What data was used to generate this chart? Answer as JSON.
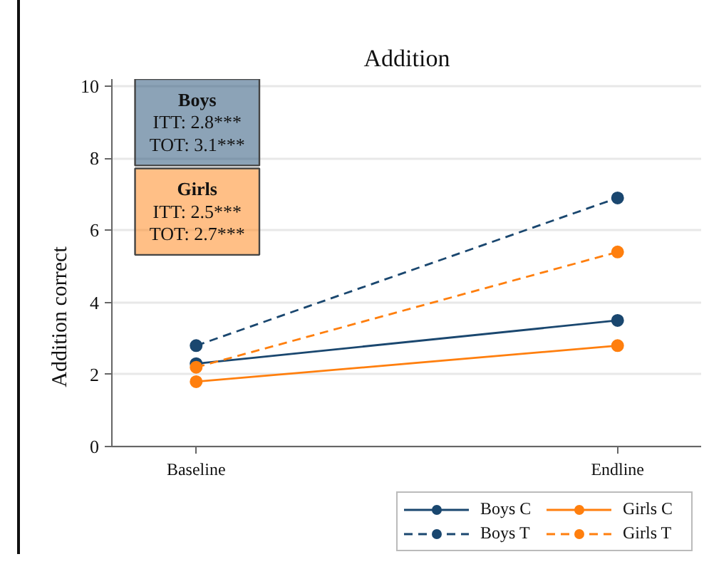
{
  "chart_data": {
    "type": "line",
    "title": "Addition",
    "ylabel": "Addition correct",
    "categories": [
      "Baseline",
      "Endline"
    ],
    "series": [
      {
        "name": "Boys C",
        "color": "#1a476f",
        "values": [
          2.3,
          3.5
        ],
        "line_style": "solid"
      },
      {
        "name": "Boys T",
        "color": "#1a476f",
        "values": [
          2.8,
          6.9
        ],
        "line_style": "dashed"
      },
      {
        "name": "Girls C",
        "color": "#ff7f0e",
        "values": [
          1.8,
          2.8
        ],
        "line_style": "solid"
      },
      {
        "name": "Girls T",
        "color": "#ff7f0e",
        "values": [
          2.2,
          5.4
        ],
        "line_style": "dashed"
      }
    ],
    "ylim": [
      0,
      10.2
    ],
    "yticks": [
      0,
      2,
      4,
      6,
      8,
      10
    ],
    "grid": "y",
    "legend": "bottom right",
    "marker": "circle",
    "annotations": [
      "Boys\nITT: 2.8***\nTOT: 3.1***",
      "Girls\nITT: 2.5***\nTOT: 2.7***"
    ]
  }
}
